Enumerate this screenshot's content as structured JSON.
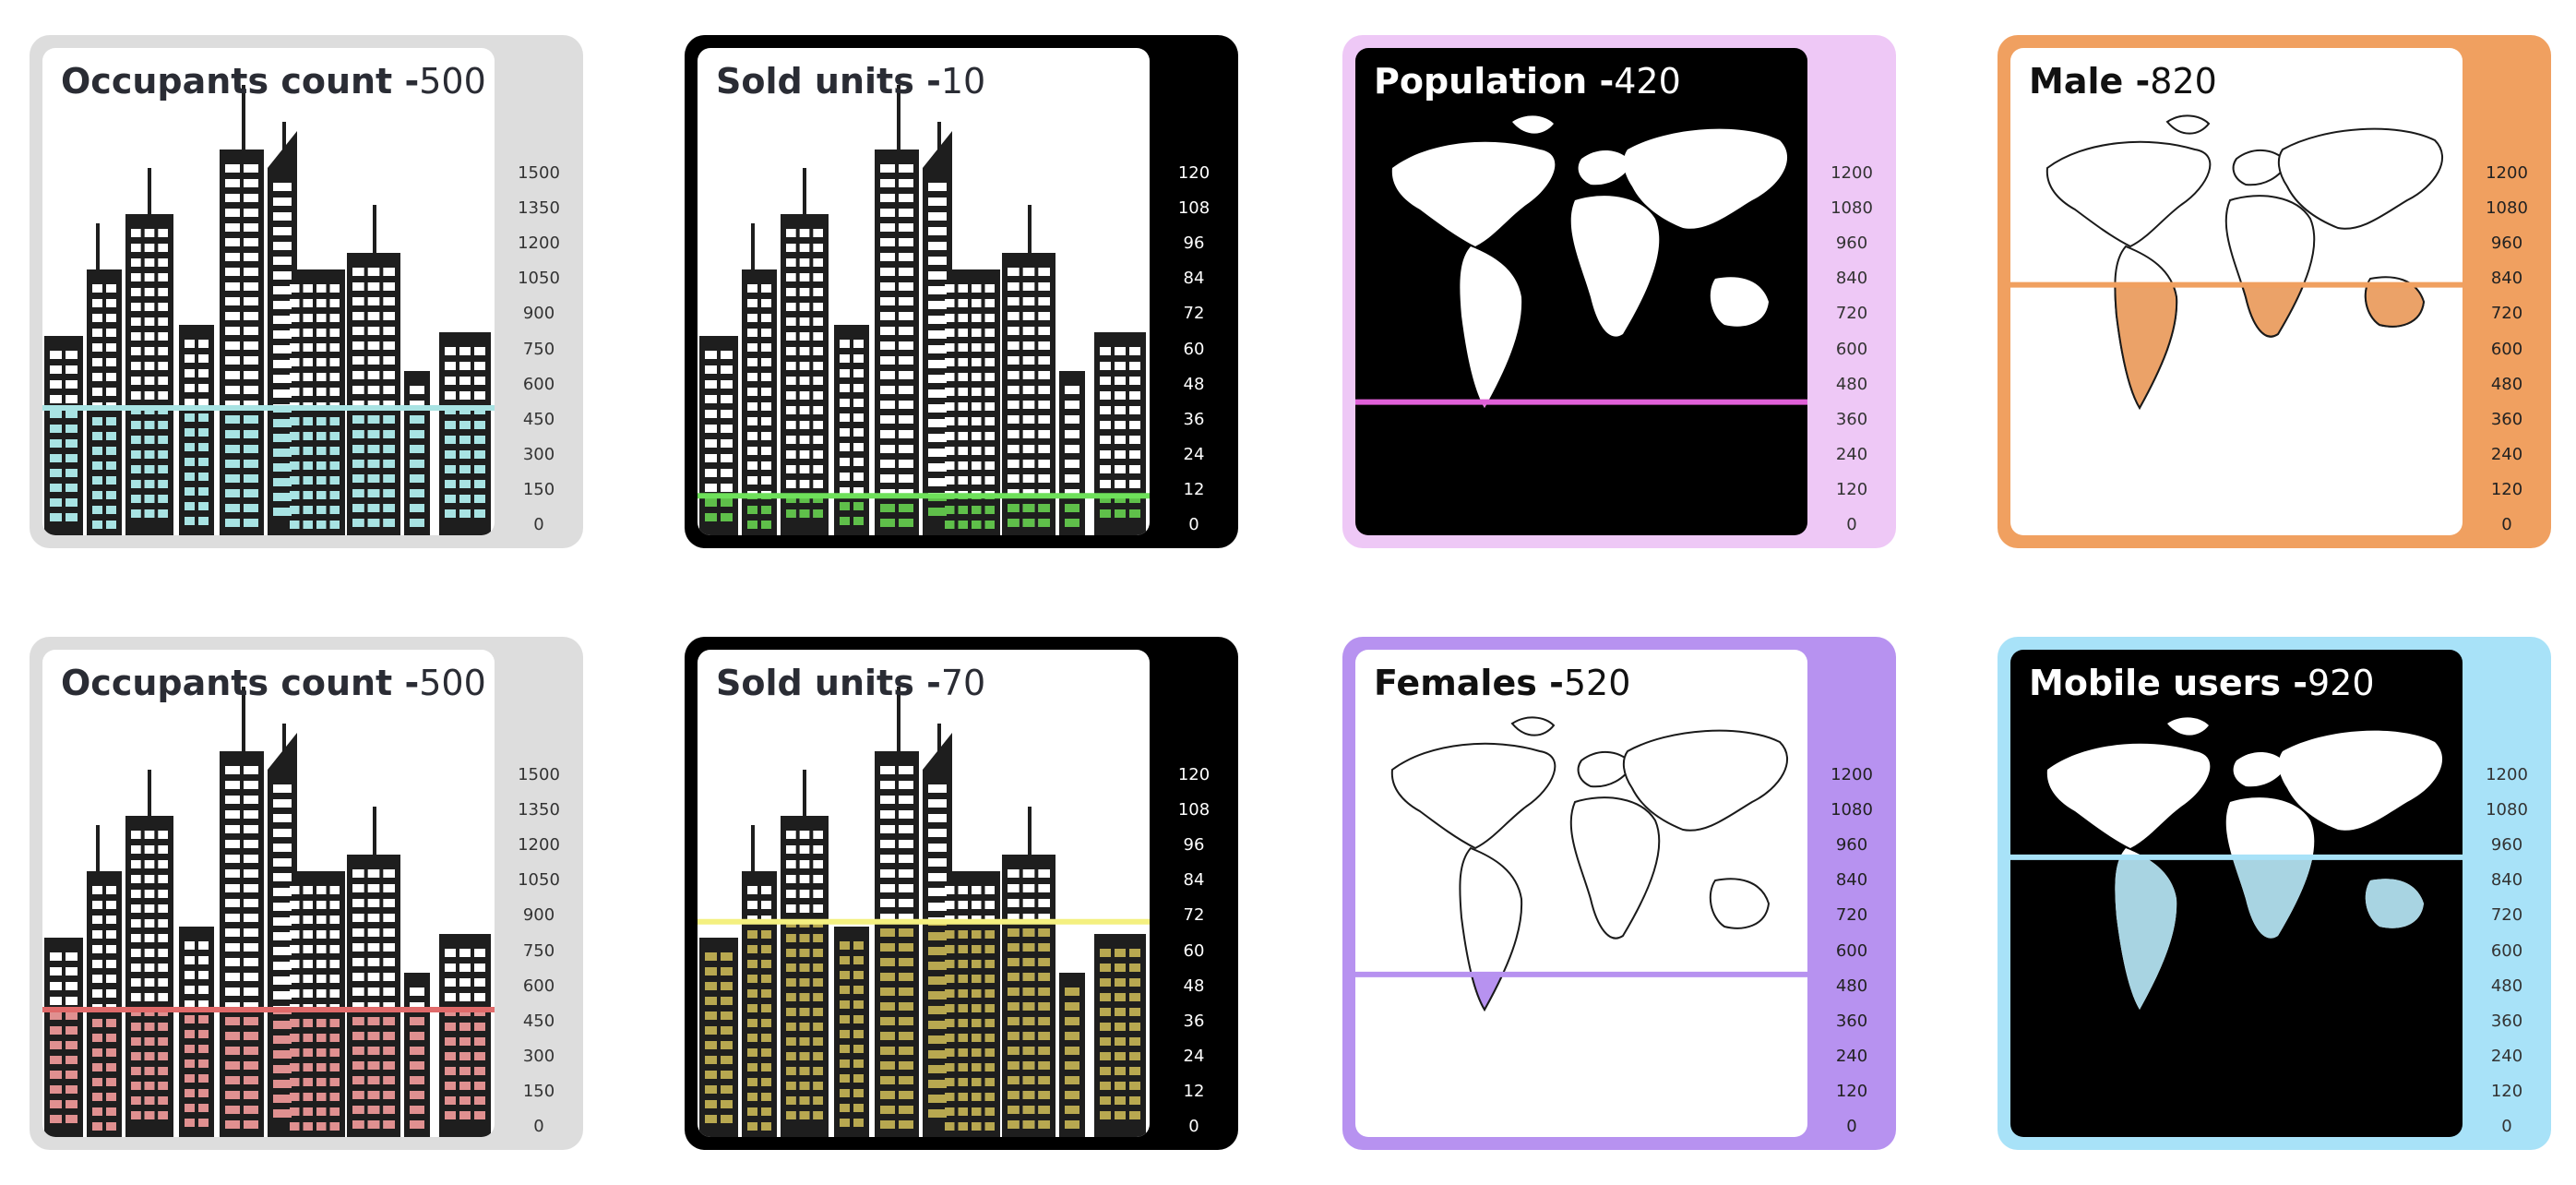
{
  "chart_data": [
    {
      "type": "bar",
      "title": "Occupants count -",
      "value": 500,
      "ymax": 1500,
      "ticks": [
        "1500",
        "1350",
        "1200",
        "1050",
        "900",
        "750",
        "600",
        "450",
        "300",
        "150",
        "0"
      ],
      "art": "city",
      "theme": "light",
      "card_bg": "#dddddd",
      "inner_bg": "#ffffff",
      "silhouette": "#1e1e1e",
      "fill": "#a8e3e3",
      "line": "#a8e3e3",
      "title_color": "#2a2c34",
      "tick_color": "#333333"
    },
    {
      "type": "bar",
      "title": "Sold units -",
      "value": 10,
      "ymax": 120,
      "ticks": [
        "120",
        "108",
        "96",
        "84",
        "72",
        "60",
        "48",
        "36",
        "24",
        "12",
        "0"
      ],
      "art": "city",
      "theme": "light",
      "card_bg": "#000000",
      "inner_bg": "#ffffff",
      "silhouette": "#1e1e1e",
      "fill": "#5fbf4a",
      "line": "#6ee05a",
      "title_color": "#2a2c34",
      "tick_color": "#ffffff"
    },
    {
      "type": "bar",
      "title": "Population -",
      "value": 420,
      "ymax": 1200,
      "ticks": [
        "1200",
        "1080",
        "960",
        "840",
        "720",
        "600",
        "480",
        "360",
        "240",
        "120",
        "0"
      ],
      "art": "map",
      "theme": "dark",
      "card_bg": "#eec8f6",
      "inner_bg": "#000000",
      "silhouette": "#ffffff",
      "fill": "#e880e0",
      "line": "#e060d8",
      "title_color": "#ffffff",
      "tick_color": "#333333"
    },
    {
      "type": "bar",
      "title": "Male -",
      "value": 820,
      "ymax": 1200,
      "ticks": [
        "1200",
        "1080",
        "960",
        "840",
        "720",
        "600",
        "480",
        "360",
        "240",
        "120",
        "0"
      ],
      "art": "map",
      "theme": "outline",
      "card_bg": "#f0a060",
      "inner_bg": "#ffffff",
      "silhouette": "#ffffff",
      "fill": "#eba268",
      "line": "#f0a060",
      "title_color": "#111111",
      "tick_color": "#222222"
    },
    {
      "type": "bar",
      "title": "Occupants count -",
      "value": 500,
      "ymax": 1500,
      "ticks": [
        "1500",
        "1350",
        "1200",
        "1050",
        "900",
        "750",
        "600",
        "450",
        "300",
        "150",
        "0"
      ],
      "art": "city",
      "theme": "light",
      "card_bg": "#dddddd",
      "inner_bg": "#ffffff",
      "silhouette": "#1e1e1e",
      "fill": "#e09090",
      "line": "#e06a6a",
      "title_color": "#2a2c34",
      "tick_color": "#333333"
    },
    {
      "type": "bar",
      "title": "Sold units -",
      "value": 70,
      "ymax": 120,
      "ticks": [
        "120",
        "108",
        "96",
        "84",
        "72",
        "60",
        "48",
        "36",
        "24",
        "12",
        "0"
      ],
      "art": "city",
      "theme": "light",
      "card_bg": "#000000",
      "inner_bg": "#ffffff",
      "silhouette": "#1e1e1e",
      "fill": "#b8a850",
      "line": "#f4f080",
      "title_color": "#2a2c34",
      "tick_color": "#ffffff"
    },
    {
      "type": "bar",
      "title": "Females -",
      "value": 520,
      "ymax": 1200,
      "ticks": [
        "1200",
        "1080",
        "960",
        "840",
        "720",
        "600",
        "480",
        "360",
        "240",
        "120",
        "0"
      ],
      "art": "map",
      "theme": "outline",
      "card_bg": "#b792f0",
      "inner_bg": "#ffffff",
      "silhouette": "#ffffff",
      "fill": "#b792f0",
      "line": "#b792f0",
      "title_color": "#111111",
      "tick_color": "#222222"
    },
    {
      "type": "bar",
      "title": "Mobile users -",
      "value": 920,
      "ymax": 1200,
      "ticks": [
        "1200",
        "1080",
        "960",
        "840",
        "720",
        "600",
        "480",
        "360",
        "240",
        "120",
        "0"
      ],
      "art": "map",
      "theme": "dark",
      "card_bg": "#a8e2f8",
      "inner_bg": "#000000",
      "silhouette": "#ffffff",
      "fill": "#a8d4e2",
      "line": "#a8e2f8",
      "title_color": "#ffffff",
      "tick_color": "#333333"
    }
  ]
}
